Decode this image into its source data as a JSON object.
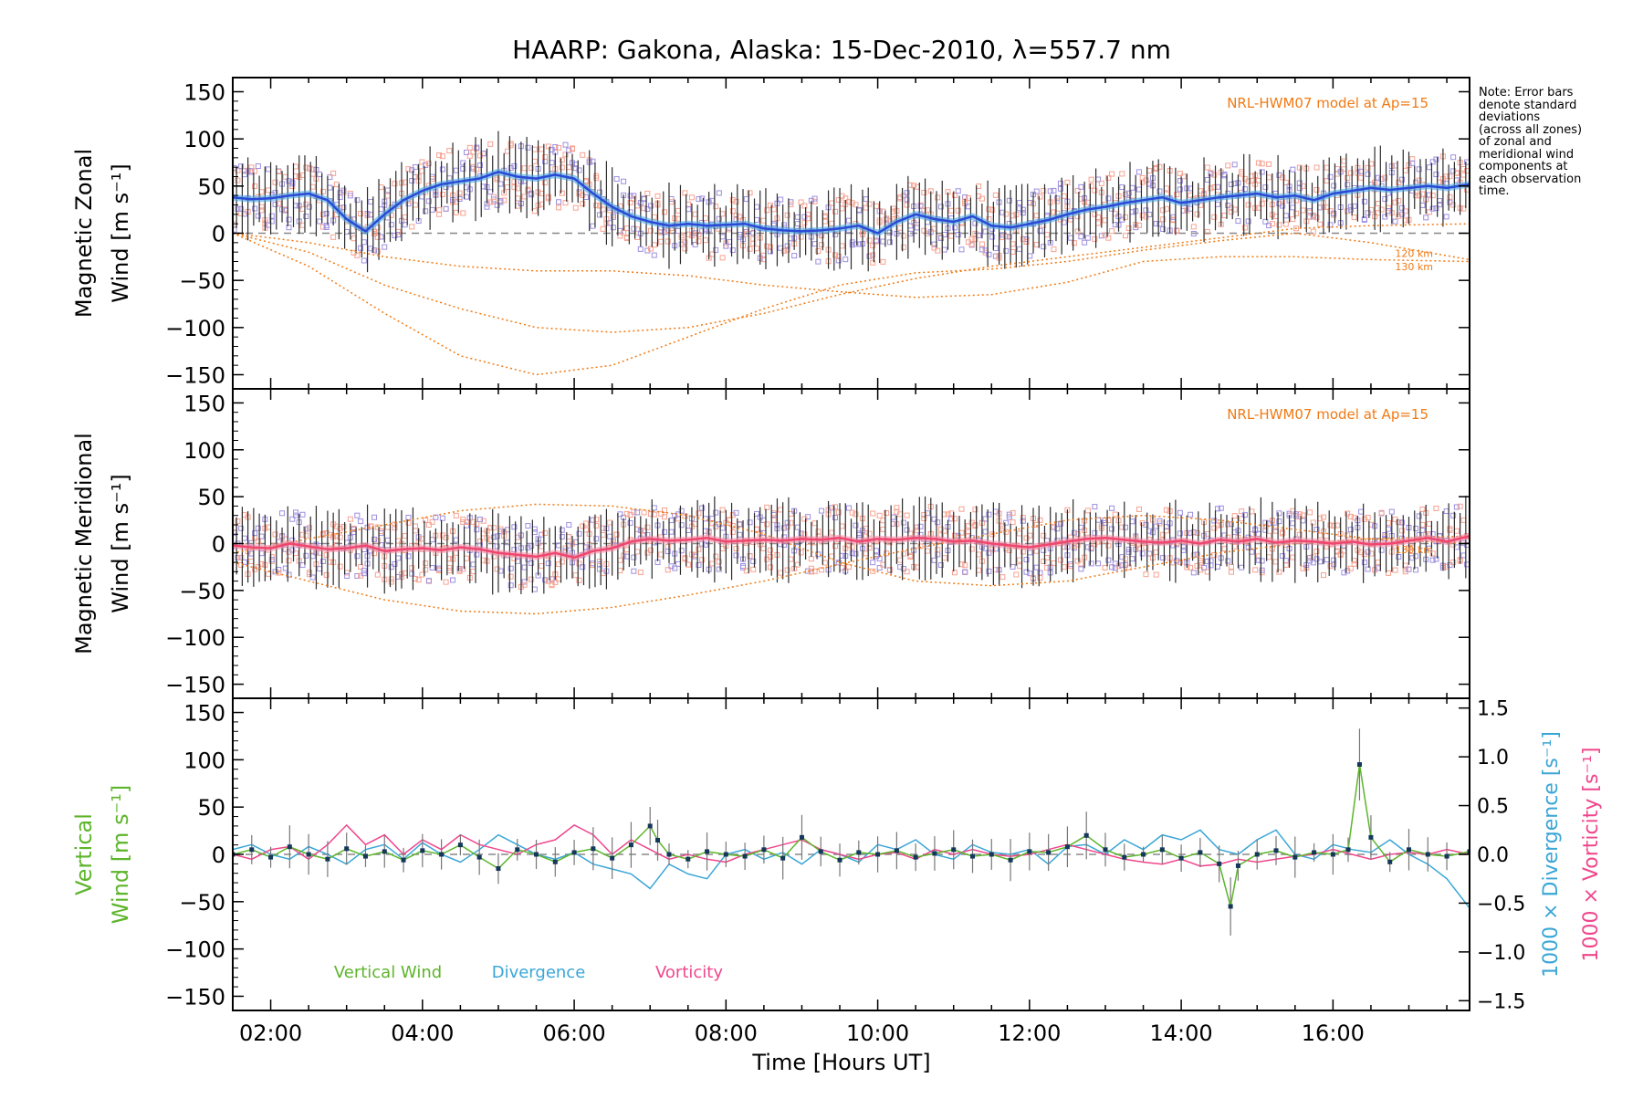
{
  "chart_data": {
    "type": "line",
    "title": "HAARP: Gakona,  Alaska: 15-Dec-2010, λ=557.7 nm",
    "xlabel": "Time [Hours UT]",
    "xlim": [
      1.5,
      17.8
    ],
    "x_ticks": [
      "02:00",
      "04:00",
      "06:00",
      "08:00",
      "10:00",
      "12:00",
      "14:00",
      "16:00"
    ],
    "x_tick_values": [
      2,
      4,
      6,
      8,
      10,
      12,
      14,
      16
    ],
    "note_lines": [
      "Note: Error bars",
      "denote standard",
      "deviations",
      "(across all zones)",
      "of zonal and",
      "meridional wind",
      "components at",
      "each observation",
      "time."
    ],
    "colors": {
      "zonal": "#2a49d6",
      "zonal_band": "#49a6e6",
      "meridional": "#f0466e",
      "model": "#f07a14",
      "scatter_purple": "#9d8fe0",
      "scatter_salmon": "#f7a290",
      "vertical": "#5db52b",
      "divergence": "#3aa6d6",
      "vorticity": "#f0468c",
      "vertical_point": "#14375a"
    },
    "panels": [
      {
        "id": "zonal",
        "ylabel_line1": "Magnetic Zonal",
        "ylabel_line2": "Wind [m s⁻¹]",
        "ylim": [
          -165,
          165
        ],
        "y_ticks": [
          150,
          100,
          50,
          0,
          -50,
          -100,
          -150
        ],
        "model_label": "NRL-HWM07 model at Ap=15",
        "model_heights": [
          "120 km",
          "130 km"
        ],
        "mean_wind": {
          "x": [
            1.5,
            1.75,
            2.0,
            2.25,
            2.5,
            2.75,
            3.0,
            3.25,
            3.5,
            3.75,
            4.0,
            4.25,
            4.5,
            4.75,
            5.0,
            5.25,
            5.5,
            5.75,
            6.0,
            6.25,
            6.5,
            6.75,
            7.0,
            7.25,
            7.5,
            7.75,
            8.0,
            8.25,
            8.5,
            8.75,
            9.0,
            9.25,
            9.5,
            9.75,
            10.0,
            10.25,
            10.5,
            10.75,
            11.0,
            11.25,
            11.5,
            11.75,
            12.0,
            12.25,
            12.5,
            12.75,
            13.0,
            13.25,
            13.5,
            13.75,
            14.0,
            14.25,
            14.5,
            14.75,
            15.0,
            15.25,
            15.5,
            15.75,
            16.0,
            16.25,
            16.5,
            16.75,
            17.0,
            17.25,
            17.5,
            17.8
          ],
          "y": [
            38,
            36,
            37,
            40,
            42,
            35,
            15,
            2,
            20,
            35,
            45,
            52,
            55,
            58,
            65,
            60,
            58,
            62,
            58,
            42,
            28,
            18,
            12,
            8,
            10,
            8,
            9,
            10,
            5,
            3,
            2,
            3,
            5,
            8,
            0,
            12,
            20,
            15,
            12,
            18,
            8,
            6,
            10,
            14,
            20,
            25,
            28,
            32,
            35,
            38,
            32,
            35,
            38,
            40,
            42,
            38,
            40,
            35,
            42,
            45,
            48,
            46,
            48,
            50,
            48,
            52
          ]
        },
        "model_curves": [
          {
            "x": [
              1.5,
              2.5,
              3.5,
              4.5,
              5.5,
              6.5,
              7.5,
              8.5,
              9.5,
              10.5,
              11.5,
              12.5,
              13.5,
              14.5,
              15.5,
              16.5,
              17.8
            ],
            "y": [
              0,
              -20,
              -55,
              -80,
              -100,
              -105,
              -100,
              -85,
              -65,
              -48,
              -35,
              -25,
              -15,
              -5,
              5,
              8,
              10
            ]
          },
          {
            "x": [
              1.5,
              2.5,
              3.5,
              4.5,
              5.5,
              6.5,
              7.5,
              8.5,
              9.5,
              10.5,
              11.5,
              12.5,
              13.5,
              14.5,
              15.5,
              16.5,
              17.8
            ],
            "y": [
              0,
              -35,
              -85,
              -130,
              -150,
              -140,
              -110,
              -80,
              -55,
              -42,
              -38,
              -30,
              -18,
              -8,
              0,
              -10,
              -28
            ]
          },
          {
            "x": [
              1.5,
              2.5,
              3.5,
              4.5,
              5.5,
              6.5,
              7.5,
              8.5,
              9.5,
              10.5,
              11.5,
              12.5,
              13.5,
              14.5,
              15.5,
              16.5,
              17.8
            ],
            "y": [
              0,
              -10,
              -25,
              -35,
              -40,
              -40,
              -45,
              -55,
              -62,
              -68,
              -65,
              -52,
              -30,
              -25,
              -25,
              -28,
              -30
            ]
          }
        ]
      },
      {
        "id": "meridional",
        "ylabel_line1": "Magnetic Meridional",
        "ylabel_line2": "Wind [m s⁻¹]",
        "ylim": [
          -165,
          165
        ],
        "y_ticks": [
          150,
          100,
          50,
          0,
          -50,
          -100,
          -150
        ],
        "model_label": "NRL-HWM07 model at Ap=15",
        "model_heights": [
          "130 km"
        ],
        "mean_wind": {
          "x": [
            1.5,
            1.75,
            2.0,
            2.25,
            2.5,
            2.75,
            3.0,
            3.25,
            3.5,
            3.75,
            4.0,
            4.25,
            4.5,
            4.75,
            5.0,
            5.25,
            5.5,
            5.75,
            6.0,
            6.25,
            6.5,
            6.75,
            7.0,
            7.25,
            7.5,
            7.75,
            8.0,
            8.25,
            8.5,
            8.75,
            9.0,
            9.25,
            9.5,
            9.75,
            10.0,
            10.25,
            10.5,
            10.75,
            11.0,
            11.25,
            11.5,
            11.75,
            12.0,
            12.25,
            12.5,
            12.75,
            13.0,
            13.25,
            13.5,
            13.75,
            14.0,
            14.25,
            14.5,
            14.75,
            15.0,
            15.25,
            15.5,
            15.75,
            16.0,
            16.25,
            16.5,
            16.75,
            17.0,
            17.25,
            17.5,
            17.8
          ],
          "y": [
            -2,
            -4,
            -5,
            0,
            -3,
            -6,
            -5,
            -2,
            -8,
            -6,
            -5,
            -7,
            -4,
            -6,
            -10,
            -12,
            -14,
            -10,
            -15,
            -8,
            -5,
            2,
            5,
            3,
            4,
            6,
            2,
            3,
            4,
            3,
            5,
            4,
            6,
            2,
            5,
            4,
            6,
            5,
            2,
            3,
            0,
            -2,
            -4,
            -1,
            2,
            5,
            6,
            4,
            2,
            1,
            3,
            0,
            4,
            2,
            5,
            1,
            3,
            2,
            0,
            2,
            -1,
            0,
            3,
            6,
            2,
            8
          ]
        },
        "model_curves": [
          {
            "x": [
              1.5,
              2.5,
              3.5,
              4.5,
              5.5,
              6.5,
              7.5,
              8.5,
              9.5,
              10.5,
              11.5,
              12.5,
              13.5,
              14.5,
              15.5,
              16.5,
              17.8
            ],
            "y": [
              -20,
              -40,
              -60,
              -72,
              -75,
              -68,
              -55,
              -40,
              -22,
              -5,
              10,
              25,
              30,
              25,
              15,
              5,
              0
            ]
          },
          {
            "x": [
              1.5,
              2.5,
              3.5,
              4.5,
              5.5,
              6.5,
              7.5,
              8.5,
              9.5,
              10.5,
              11.5,
              12.5,
              13.5,
              14.5,
              15.5,
              16.5,
              17.8
            ],
            "y": [
              -10,
              5,
              20,
              35,
              42,
              40,
              30,
              10,
              -20,
              -40,
              -45,
              -40,
              -25,
              -10,
              0,
              5,
              8
            ]
          }
        ]
      },
      {
        "id": "vertical",
        "ylabel_line1": "Vertical",
        "ylabel_line2": "Wind [m s⁻¹]",
        "ylim": [
          -165,
          165
        ],
        "y_ticks": [
          150,
          100,
          50,
          0,
          -50,
          -100,
          -150
        ],
        "right_axis": {
          "ylim": [
            -1.6,
            1.6
          ],
          "ticks": [
            1.5,
            1.0,
            0.5,
            0.0,
            -0.5,
            -1.0,
            -1.5
          ],
          "tick_labels": [
            "1.5",
            "1.0",
            "0.5",
            "0.0",
            "−0.5",
            "−1.0",
            "−1.5"
          ],
          "label_divergence": "1000 × Divergence [s⁻¹]",
          "label_vorticity": "1000 × Vorticity [s⁻¹]"
        },
        "legend": [
          "Vertical Wind",
          "Divergence",
          "Vorticity"
        ],
        "vertical_wind": {
          "x": [
            1.5,
            1.75,
            2.0,
            2.25,
            2.5,
            2.75,
            3.0,
            3.25,
            3.5,
            3.75,
            4.0,
            4.25,
            4.5,
            4.75,
            5.0,
            5.25,
            5.5,
            5.75,
            6.0,
            6.25,
            6.5,
            6.75,
            7.0,
            7.1,
            7.25,
            7.5,
            7.75,
            8.0,
            8.25,
            8.5,
            8.75,
            9.0,
            9.25,
            9.5,
            9.75,
            10.0,
            10.25,
            10.5,
            10.75,
            11.0,
            11.25,
            11.5,
            11.75,
            12.0,
            12.25,
            12.5,
            12.75,
            13.0,
            13.25,
            13.5,
            13.75,
            14.0,
            14.25,
            14.5,
            14.65,
            14.75,
            15.0,
            15.25,
            15.5,
            15.75,
            16.0,
            16.2,
            16.35,
            16.5,
            16.75,
            17.0,
            17.25,
            17.5,
            17.8
          ],
          "y": [
            0,
            5,
            -3,
            8,
            0,
            -5,
            6,
            -2,
            3,
            -6,
            4,
            0,
            10,
            -3,
            -15,
            5,
            0,
            -8,
            2,
            6,
            -4,
            10,
            30,
            15,
            0,
            -5,
            3,
            0,
            -2,
            5,
            -4,
            18,
            3,
            -6,
            2,
            0,
            4,
            -3,
            1,
            5,
            -2,
            0,
            -6,
            3,
            2,
            8,
            20,
            5,
            -3,
            0,
            5,
            -4,
            2,
            -10,
            -55,
            -12,
            0,
            4,
            -3,
            2,
            0,
            5,
            95,
            18,
            -8,
            5,
            0,
            -2,
            3
          ]
        },
        "divergence": {
          "x": [
            1.5,
            1.75,
            2.0,
            2.25,
            2.5,
            2.75,
            3.0,
            3.25,
            3.5,
            3.75,
            4.0,
            4.25,
            4.5,
            4.75,
            5.0,
            5.25,
            5.5,
            5.75,
            6.0,
            6.25,
            6.5,
            6.75,
            7.0,
            7.25,
            7.5,
            7.75,
            8.0,
            8.25,
            8.5,
            8.75,
            9.0,
            9.25,
            9.5,
            9.75,
            10.0,
            10.25,
            10.5,
            10.75,
            11.0,
            11.25,
            11.5,
            11.75,
            12.0,
            12.25,
            12.5,
            12.75,
            13.0,
            13.25,
            13.5,
            13.75,
            14.0,
            14.25,
            14.5,
            14.75,
            15.0,
            15.25,
            15.5,
            15.75,
            16.0,
            16.25,
            16.5,
            16.75,
            17.0,
            17.25,
            17.5,
            17.8
          ],
          "y": [
            0.05,
            0.1,
            0.0,
            -0.05,
            0.08,
            0.0,
            -0.1,
            0.05,
            0.1,
            -0.05,
            0.12,
            0.0,
            -0.08,
            0.05,
            0.2,
            0.1,
            0.0,
            -0.05,
            0.02,
            -0.1,
            -0.15,
            -0.2,
            -0.35,
            -0.1,
            -0.2,
            -0.25,
            0.0,
            0.05,
            -0.05,
            0.02,
            -0.1,
            0.05,
            0.0,
            -0.08,
            0.1,
            0.05,
            0.15,
            0.0,
            -0.05,
            0.1,
            0.02,
            0.0,
            0.05,
            -0.1,
            0.08,
            0.1,
            0.0,
            0.15,
            0.05,
            0.2,
            0.15,
            0.25,
            0.05,
            0.0,
            0.15,
            0.25,
            0.0,
            -0.05,
            0.1,
            0.05,
            0.02,
            0.15,
            0.0,
            -0.1,
            -0.25,
            -0.55
          ]
        },
        "vorticity": {
          "x": [
            1.5,
            1.75,
            2.0,
            2.25,
            2.5,
            2.75,
            3.0,
            3.25,
            3.5,
            3.75,
            4.0,
            4.25,
            4.5,
            4.75,
            5.0,
            5.25,
            5.5,
            5.75,
            6.0,
            6.25,
            6.5,
            6.75,
            7.0,
            7.25,
            7.5,
            7.75,
            8.0,
            8.25,
            8.5,
            8.75,
            9.0,
            9.25,
            9.5,
            9.75,
            10.0,
            10.25,
            10.5,
            10.75,
            11.0,
            11.25,
            11.5,
            11.75,
            12.0,
            12.25,
            12.5,
            12.75,
            13.0,
            13.25,
            13.5,
            13.75,
            14.0,
            14.25,
            14.5,
            14.75,
            15.0,
            15.25,
            15.5,
            15.75,
            16.0,
            16.25,
            16.5,
            16.75,
            17.0,
            17.25,
            17.5,
            17.8
          ],
          "y": [
            0.0,
            -0.05,
            0.05,
            0.08,
            -0.05,
            0.1,
            0.3,
            0.1,
            0.2,
            0.0,
            0.15,
            0.05,
            0.2,
            0.1,
            0.05,
            0.0,
            0.1,
            0.15,
            0.3,
            0.2,
            0.0,
            0.15,
            0.05,
            -0.05,
            0.0,
            -0.05,
            -0.08,
            0.0,
            0.05,
            0.1,
            0.15,
            0.05,
            0.0,
            -0.05,
            0.0,
            0.02,
            -0.05,
            0.05,
            0.0,
            0.05,
            0.0,
            -0.02,
            0.0,
            0.05,
            0.1,
            0.05,
            0.0,
            -0.05,
            -0.08,
            -0.1,
            -0.05,
            -0.12,
            -0.1,
            -0.05,
            -0.08,
            -0.05,
            -0.02,
            0.0,
            0.05,
            0.0,
            -0.05,
            0.0,
            0.02,
            0.0,
            0.05,
            0.0
          ]
        }
      }
    ]
  }
}
